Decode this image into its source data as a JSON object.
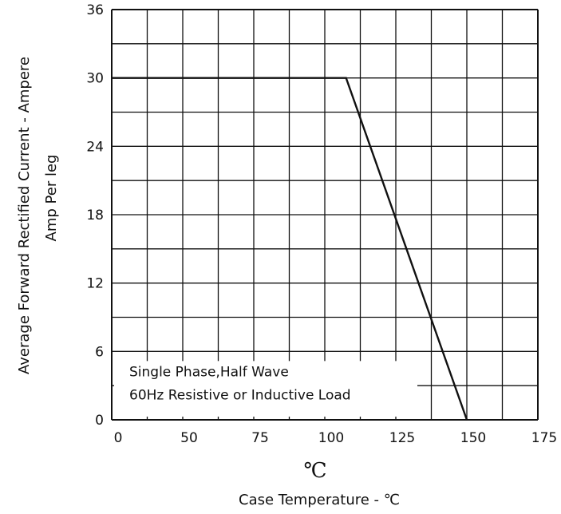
{
  "chart_data": {
    "type": "line",
    "x_label_upper": "℃",
    "x_label": "Case Temperature  - ℃",
    "y_label": "Average Forward Rectified Current - Ampere",
    "y_label_2": "Amp   Per leg",
    "x_ticks": [
      "0",
      "50",
      "75",
      "100",
      "125",
      "150",
      "175"
    ],
    "y_ticks": [
      "0",
      "6",
      "12",
      "18",
      "24",
      "30",
      "36"
    ],
    "xlim": [
      25,
      175
    ],
    "ylim": [
      0,
      36
    ],
    "grid": true,
    "series": [
      {
        "x": [
          25,
          107.5,
          150
        ],
        "y": [
          30,
          30,
          0
        ]
      }
    ],
    "annotation": {
      "line1": "Single Phase,Half Wave",
      "line2": "60Hz Resistive or Inductive Load"
    },
    "colors": {
      "line": "#111111",
      "grid": "#111111",
      "background": "#ffffff"
    }
  }
}
